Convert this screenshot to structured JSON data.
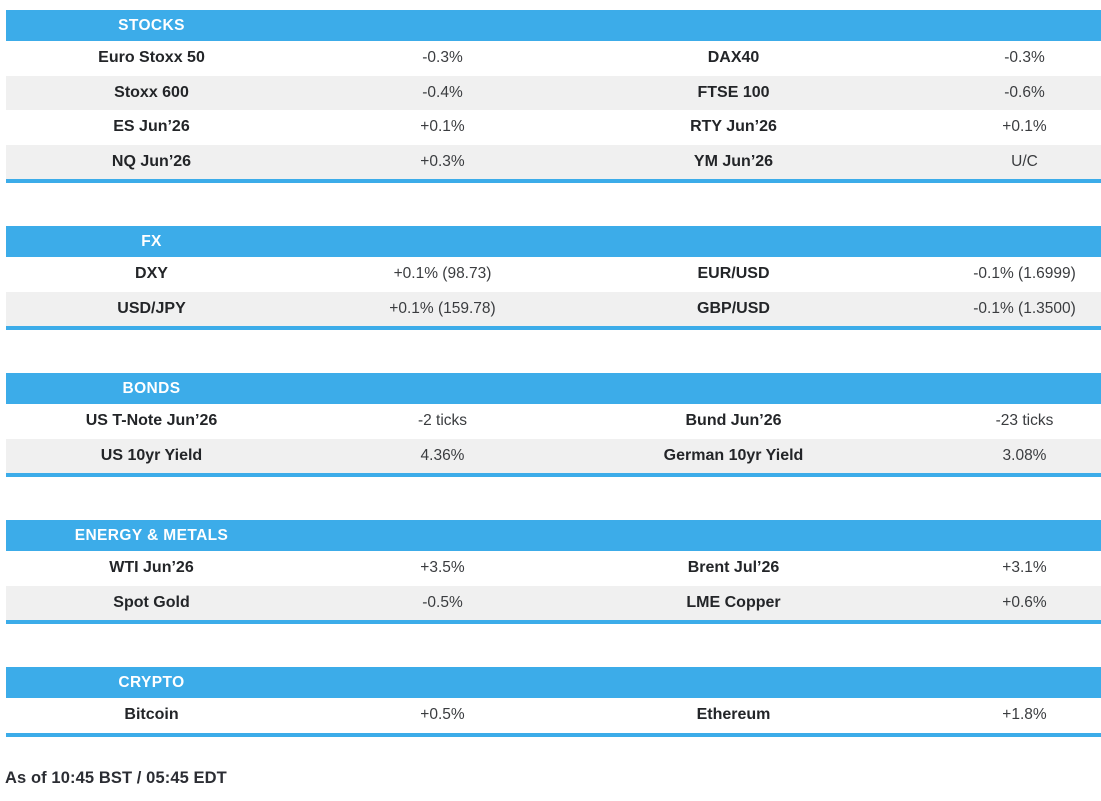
{
  "colors": {
    "accent_blue": "#3cace9",
    "row_alt_gray": "#f0f0f0",
    "label_text": "#232528",
    "value_text": "#3a3c3f"
  },
  "sections": [
    {
      "id": "stocks",
      "title": "STOCKS",
      "rows": [
        [
          "Euro Stoxx 50",
          "-0.3%",
          "DAX40",
          "-0.3%"
        ],
        [
          "Stoxx 600",
          "-0.4%",
          "FTSE 100",
          "-0.6%"
        ],
        [
          "ES Jun’26",
          "+0.1%",
          "RTY Jun’26",
          "+0.1%"
        ],
        [
          "NQ Jun’26",
          "+0.3%",
          "YM Jun’26",
          "U/C"
        ]
      ]
    },
    {
      "id": "fx",
      "title": "FX",
      "rows": [
        [
          "DXY",
          "+0.1% (98.73)",
          "EUR/USD",
          "-0.1% (1.6999)"
        ],
        [
          "USD/JPY",
          "+0.1% (159.78)",
          "GBP/USD",
          "-0.1% (1.3500)"
        ]
      ]
    },
    {
      "id": "bonds",
      "title": "BONDS",
      "rows": [
        [
          "US T-Note Jun’26",
          "-2 ticks",
          "Bund Jun’26",
          "-23 ticks"
        ],
        [
          "US 10yr Yield",
          "4.36%",
          "German 10yr Yield",
          "3.08%"
        ]
      ]
    },
    {
      "id": "energy-metals",
      "title": "ENERGY & METALS",
      "rows": [
        [
          "WTI Jun’26",
          "+3.5%",
          "Brent Jul’26",
          "+3.1%"
        ],
        [
          "Spot Gold",
          "-0.5%",
          "LME Copper",
          "+0.6%"
        ]
      ]
    },
    {
      "id": "crypto",
      "title": "CRYPTO",
      "rows": [
        [
          "Bitcoin",
          "+0.5%",
          "Ethereum",
          "+1.8%"
        ]
      ]
    }
  ],
  "footer": {
    "as_of": "As of 10:45 BST / 05:45 EDT"
  }
}
